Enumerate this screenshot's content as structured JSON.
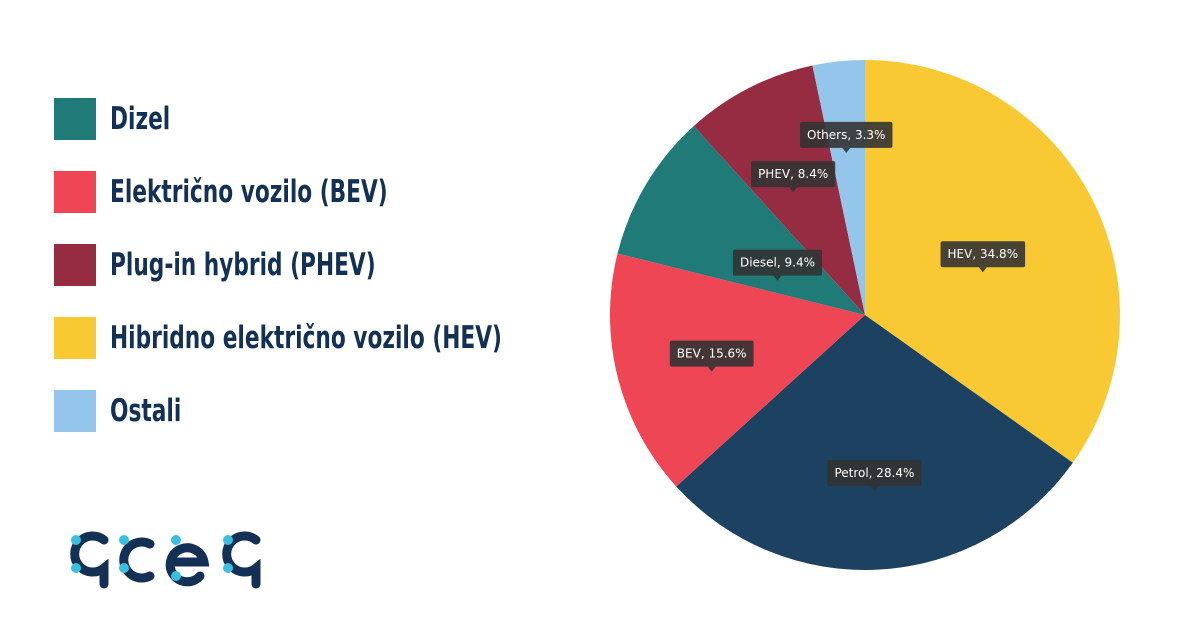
{
  "legend": {
    "items": [
      {
        "label": "Dizel",
        "color": "#1f7a78"
      },
      {
        "label": "Električno vozilo (BEV)",
        "color": "#ef4655"
      },
      {
        "label": "Plug-in hybrid (PHEV)",
        "color": "#962c42"
      },
      {
        "label": "Hibridno električno vozilo (HEV)",
        "color": "#f9c933"
      },
      {
        "label": "Ostali",
        "color": "#93c6ea"
      }
    ]
  },
  "logo": {
    "text": "acea",
    "color": "#133055",
    "dot_color": "#3bbfe0"
  },
  "chart_data": {
    "type": "pie",
    "start": "top, clockwise",
    "slices": [
      {
        "name": "HEV",
        "value": 34.8,
        "label": "HEV, 34.8%",
        "color": "#f9c933"
      },
      {
        "name": "Petrol",
        "value": 28.4,
        "label": "Petrol, 28.4%",
        "color": "#1d4160"
      },
      {
        "name": "BEV",
        "value": 15.6,
        "label": "BEV, 15.6%",
        "color": "#ef4655"
      },
      {
        "name": "Diesel",
        "value": 9.4,
        "label": "Diesel, 9.4%",
        "color": "#1f7a78"
      },
      {
        "name": "PHEV",
        "value": 8.4,
        "label": "PHEV, 8.4%",
        "color": "#962c42"
      },
      {
        "name": "Others",
        "value": 3.3,
        "label": "Others, 3.3%",
        "color": "#93c6ea"
      }
    ],
    "tooltip_color": "#333333"
  }
}
